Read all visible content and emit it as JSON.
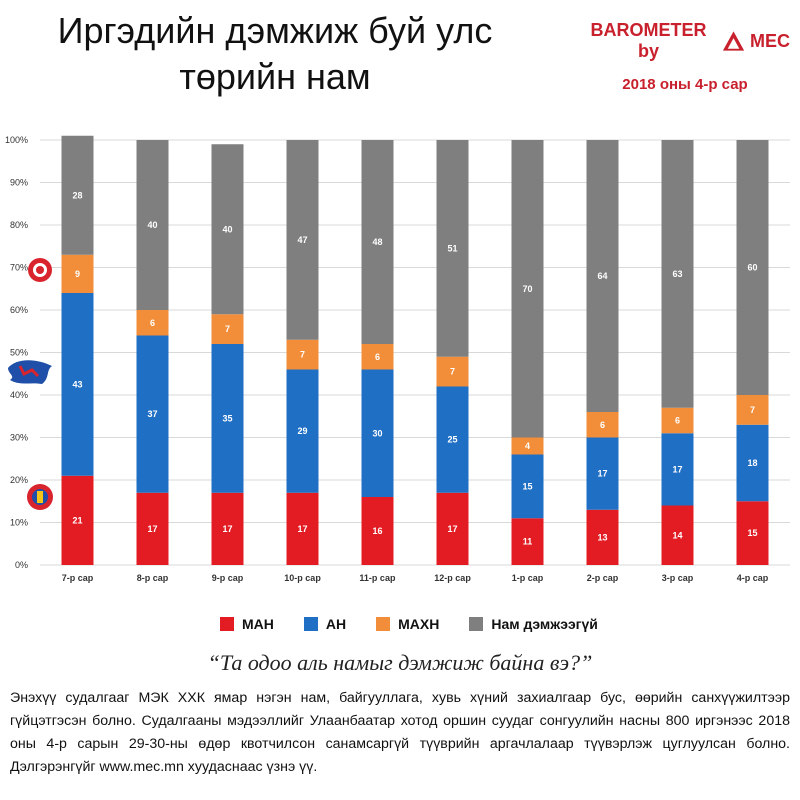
{
  "header": {
    "title": "Иргэдийн дэмжиж буй улс төрийн нам",
    "brand": "BAROMETER by",
    "brand_logo_text": "MEC",
    "period": "2018 оны 4-р сар"
  },
  "colors": {
    "МАН": "#e31c24",
    "АН": "#1f6fc5",
    "МАХН": "#f28e3a",
    "Нам дэмжээгүй": "#7f7f7f",
    "brand": "#c8202c"
  },
  "chart_data": {
    "type": "bar",
    "stacked": true,
    "categories": [
      "7-р сар",
      "8-р сар",
      "9-р сар",
      "10-р сар",
      "11-р сар",
      "12-р сар",
      "1-р сар",
      "2-р сар",
      "3-р сар",
      "4-р сар"
    ],
    "series": [
      {
        "name": "МАН",
        "values": [
          21,
          17,
          17,
          17,
          16,
          17,
          11,
          13,
          14,
          15
        ]
      },
      {
        "name": "АН",
        "values": [
          43,
          37,
          35,
          29,
          30,
          25,
          15,
          17,
          17,
          18
        ]
      },
      {
        "name": "МАХН",
        "values": [
          9,
          6,
          7,
          7,
          6,
          7,
          4,
          6,
          6,
          7
        ]
      },
      {
        "name": "Нам дэмжээгүй",
        "values": [
          28,
          40,
          40,
          47,
          48,
          51,
          70,
          64,
          63,
          60
        ]
      }
    ],
    "y_ticks": [
      "0%",
      "10%",
      "20%",
      "30%",
      "40%",
      "50%",
      "60%",
      "70%",
      "80%",
      "90%",
      "100%"
    ],
    "ylim": [
      0,
      100
    ],
    "grid": true,
    "legend_position": "bottom"
  },
  "question": "“Та одоо аль намыг дэмжиж байна вэ?”",
  "footnote": "Энэхүү судалгааг МЭК ХХК ямар нэгэн нам, байгууллага, хувь хүний захиалгаар бус, өөрийн санхүүжилтээр гүйцэтгэсэн болно. Судалгааны мэдээллийг Улаанбаатар хотод оршин суудаг сонгуулийн насны 800 иргэнээс 2018 оны 4-р сарын 29-30-ны өдөр квотчилсон санамсаргүй түүврийн аргачлалаар түүвэрлэж цуглуулсан болно. Дэлгэрэнгүйг www.mec.mn хуудаснаас үзнэ үү."
}
